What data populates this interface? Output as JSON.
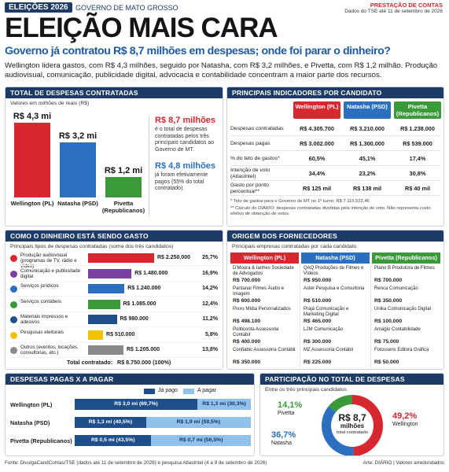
{
  "header": {
    "badge": "ELEIÇÕES 2026",
    "region": "GOVERNO DE MATO GROSSO",
    "section": "PRESTAÇÃO DE CONTAS",
    "date": "Dados do TSE até 11 de setembro de 2026"
  },
  "title": "ELEIÇÃO MAIS CARA",
  "subtitle": "Governo já contratou R$ 8,7 milhões em despesas; onde foi parar o dinheiro?",
  "intro": "Wellington lidera gastos, com R$ 4,3 milhões, seguido por Natasha, com R$ 3,2 milhões, e Pivetta, com R$ 1,2 milhão. Produção audiovisual, comunicação, publicidade digital, advocacia e contabilidade concentram a maior parte dos recursos.",
  "total_chart": {
    "title": "TOTAL DE DESPESAS CONTRATADAS",
    "note": "Valores em milhões de reais (R$)",
    "categories": [
      "Wellington (PL)",
      "Natasha (PSD)",
      "Pivetta (Republicanos)"
    ],
    "values": [
      4.3,
      3.2,
      1.2
    ],
    "value_labels": [
      "R$ 4,3 mi",
      "R$ 3,2 mi",
      "R$ 1,2 mi"
    ],
    "colors": [
      "#d7282f",
      "#2a6fc0",
      "#3a9a3a"
    ],
    "callouts": [
      {
        "value": "R$ 8,7 milhões",
        "text": "é o total de despesas contratadas pelos três principais candidatos ao Governo de MT.",
        "color": "#d7282f"
      },
      {
        "value": "R$ 4,8 milhões",
        "text": "já foram efetivamente pagos (55% do total contratado).",
        "color": "#2a6fc0"
      }
    ]
  },
  "indicators": {
    "title": "PRINCIPAIS INDICADORES POR CANDIDATO",
    "columns": [
      "Wellington (PL)",
      "Natasha (PSD)",
      "Pivetta (Republicanos)"
    ],
    "colors": [
      "#d7282f",
      "#2a6fc0",
      "#3a9a3a"
    ],
    "rows": [
      [
        "Despesas contratadas",
        "R$ 4.305.700",
        "R$ 3.210.000",
        "R$ 1.238.000"
      ],
      [
        "Despesas pagas",
        "R$ 3.002.000",
        "R$ 1.300.000",
        "R$ 539.000"
      ],
      [
        "% do teto de gastos*",
        "60,5%",
        "45,1%",
        "17,4%"
      ],
      [
        "Intenção de voto (AtlasIntel)",
        "34,4%",
        "23,2%",
        "30,8%"
      ],
      [
        "Gasto por ponto percentual**",
        "R$ 125 mil",
        "R$ 138 mil",
        "R$ 40 mil"
      ]
    ],
    "notes": [
      "* Teto de gastos para o Governo de MT no 1º turno: R$ 7.115.522,46",
      "** Cálculo do DIÁRIO: despesas contratadas divididas pela intenção de voto. Não representa custo efetivo de obtenção de votos."
    ]
  },
  "spending": {
    "title": "COMO O DINHEIRO ESTÁ SENDO GASTO",
    "note": "Principais tipos de despesas contratadas (soma dos três candidatos)",
    "categories": [
      "Produção audiovisual (programas de TV, rádio e vídeo)",
      "Comunicação e publicidade digital",
      "Serviços jurídicos",
      "Serviços contábeis",
      "Materiais impressos e adesivos",
      "Pesquisas eleitorais",
      "Outros (eventos, locações, consultorias, etc.)"
    ],
    "values": [
      2250000,
      1480000,
      1240000,
      1085000,
      980000,
      510000,
      1205000
    ],
    "value_labels": [
      "R$ 2.250.000",
      "R$ 1.480.000",
      "R$ 1.240.000",
      "R$ 1.085.000",
      "R$ 980.000",
      "R$ 510.000",
      "R$ 1.205.000"
    ],
    "shares": [
      25.7,
      16.9,
      14.2,
      12.4,
      11.2,
      5.8,
      13.8
    ],
    "share_labels": [
      "25,7%",
      "16,9%",
      "14,2%",
      "12,4%",
      "11,2%",
      "5,8%",
      "13,8%"
    ],
    "colors": [
      "#d7282f",
      "#7b3fa0",
      "#2a6fc0",
      "#3a9a3a",
      "#1f4e8c",
      "#f2c200",
      "#8a8a8a"
    ],
    "total_label": "Total contratado:",
    "total_value": "R$ 8.750.000 (100%)"
  },
  "suppliers": {
    "title": "ORIGEM DOS FORNECEDORES",
    "note": "Principais empresas contratadas por cada candidato",
    "columns": [
      {
        "name": "Wellington (PL)",
        "color": "#d7282f",
        "items": [
          {
            "name": "D'Moura & Ianhes Sociedade de Advogados",
            "value": "R$ 700.000"
          },
          {
            "name": "Pantanal Filmes Áudio e Imagem",
            "value": "R$ 600.000"
          },
          {
            "name": "Pixxo Mídia Personalizados",
            "value": "R$ 498.100"
          },
          {
            "name": "Politiconta Assessoria Contábil",
            "value": "R$ 400.000"
          },
          {
            "name": "Confiabic Assessoria Contábil",
            "value": "R$ 350.000"
          }
        ]
      },
      {
        "name": "Natasha (PSD)",
        "color": "#2a6fc0",
        "items": [
          {
            "name": "QAQ Produções de Filmes e Vídeos",
            "value": "R$ 950.000"
          },
          {
            "name": "Aster Pesquisa e Consultoria",
            "value": "R$ 510.000"
          },
          {
            "name": "Prajá Comunicação e Marketing Digital",
            "value": "R$ 465.000"
          },
          {
            "name": "L2M Comunicação",
            "value": "R$ 300.000"
          },
          {
            "name": "MZ Assessoria Contábil",
            "value": "R$ 225.000"
          }
        ]
      },
      {
        "name": "Pivetta (Republicanos)",
        "color": "#3a9a3a",
        "items": [
          {
            "name": "Plano B Produtora de Filmes",
            "value": "R$ 700.000"
          },
          {
            "name": "Renca Comunicação",
            "value": "R$ 350.000"
          },
          {
            "name": "Unika Comunicação Digital",
            "value": "R$ 100.000"
          },
          {
            "name": "Amágio Contabilidade",
            "value": "R$ 75.000"
          },
          {
            "name": "Fotossens Editora Gráfica",
            "value": "R$ 50.000"
          }
        ]
      }
    ]
  },
  "paid": {
    "title": "DESPESAS PAGAS X A PAGAR",
    "legend": [
      "Já pago",
      "A pagar"
    ],
    "colors": [
      "#1f4e8c",
      "#8fc1ea"
    ],
    "categories": [
      "Wellington (PL)",
      "Natasha (PSD)",
      "Pivetta (Republicanos)"
    ],
    "paid": [
      69.7,
      40.5,
      43.5
    ],
    "paid_labels": [
      "R$ 3,0 mi (69,7%)",
      "R$ 1,3 mi (40,5%)",
      "R$ 0,5 mi (43,5%)"
    ],
    "unpaid": [
      30.3,
      59.5,
      56.5
    ],
    "unpaid_labels": [
      "R$ 1,3 mi (30,3%)",
      "R$ 1,9 mi (59,5%)",
      "R$ 0,7 mi (56,5%)"
    ]
  },
  "share": {
    "title": "PARTICIPAÇÃO NO TOTAL DE DESPESAS",
    "note": "Entre os três principais candidatos",
    "categories": [
      "Wellington",
      "Natasha",
      "Pivetta"
    ],
    "values": [
      49.2,
      36.7,
      14.1
    ],
    "value_labels": [
      "49,2%",
      "36,7%",
      "14,1%"
    ],
    "colors": [
      "#d7282f",
      "#2a6fc0",
      "#3a9a3a"
    ],
    "center": [
      "R$ 8,7",
      "milhões",
      "total contratado"
    ]
  },
  "footer": {
    "source": "Fonte: DivulgaCandContas/TSE (dados até 11 de setembro de 2026) e pesquisa AtlasIntel (4 a 9 de setembro de 2026)",
    "credit": "Arte: DIÁRIO | Valores arredondados"
  }
}
